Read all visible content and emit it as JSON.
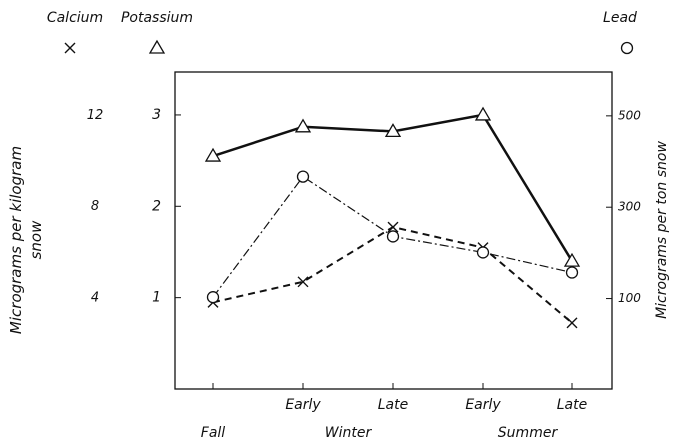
{
  "chart_data": {
    "type": "line",
    "categories": [
      "Fall",
      "Early",
      "Late",
      "Early",
      "Late"
    ],
    "category_groups": [
      {
        "label": "Winter",
        "members": [
          1,
          2
        ]
      },
      {
        "label": "Summer",
        "members": [
          3,
          4
        ]
      }
    ],
    "ylabel": "Micrograms per kilogram snow",
    "y2label": "Micrograms per ton snow",
    "ylim": [
      0,
      3.47
    ],
    "yticks": [
      1,
      2,
      3
    ],
    "y2lim": [
      -98,
      596
    ],
    "y2ticks": [
      100,
      300,
      500
    ],
    "y3lim": [
      0,
      13.9
    ],
    "y3ticks": [
      4,
      8,
      12
    ],
    "series": [
      {
        "name": "Calcium",
        "marker": "x",
        "dash": "7,5",
        "width": 2,
        "color": "#111",
        "axis": "y3",
        "values": [
          3.8,
          4.7,
          7.1,
          6.2,
          2.9
        ]
      },
      {
        "name": "Potassium",
        "marker": "triangle",
        "dash": "none",
        "width": 2.5,
        "color": "#111",
        "values": [
          2.55,
          2.87,
          2.82,
          3.0,
          1.4
        ]
      },
      {
        "name": "Lead",
        "marker": "circle",
        "dash": "9,3,2,3",
        "width": 1.2,
        "color": "#111",
        "axis": "y2",
        "values": [
          103,
          367,
          236,
          201,
          157
        ]
      }
    ]
  }
}
